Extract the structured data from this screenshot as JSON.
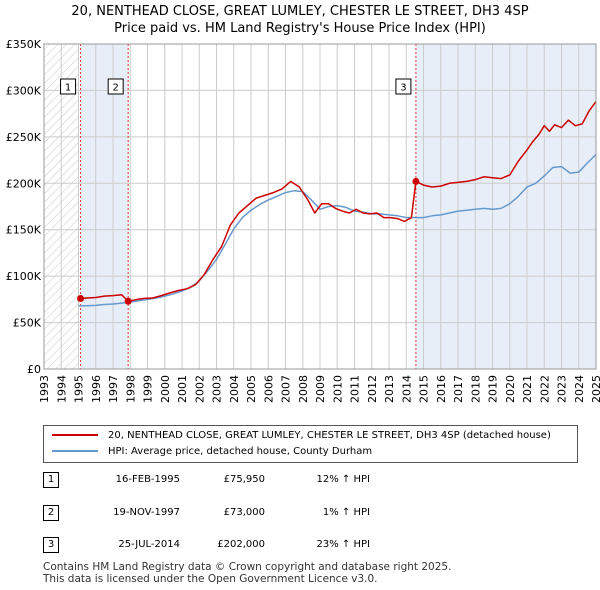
{
  "title_line1": "20, NENTHEAD CLOSE, GREAT LUMLEY, CHESTER LE STREET, DH3 4SP",
  "title_line2": "Price paid vs. HM Land Registry's House Price Index (HPI)",
  "colors": {
    "property": "#cc0000",
    "hpi": "#6699cc",
    "grid": "#cccccc",
    "shade": "#e8eef8"
  },
  "chart_data": {
    "type": "line",
    "title": "Price paid vs. HM Land Registry's House Price Index (HPI)",
    "xlabel": "",
    "ylabel": "",
    "xlim": [
      1993,
      2025
    ],
    "ylim": [
      0,
      350000
    ],
    "y_ticks": [
      0,
      50000,
      100000,
      150000,
      200000,
      250000,
      300000,
      350000
    ],
    "y_tick_labels": [
      "£0",
      "£50K",
      "£100K",
      "£150K",
      "£200K",
      "£250K",
      "£300K",
      "£350K"
    ],
    "x_ticks": [
      1993,
      1994,
      1995,
      1996,
      1997,
      1998,
      1999,
      2000,
      2001,
      2002,
      2003,
      2004,
      2005,
      2006,
      2007,
      2008,
      2009,
      2010,
      2011,
      2012,
      2013,
      2014,
      2015,
      2016,
      2017,
      2018,
      2019,
      2020,
      2021,
      2022,
      2023,
      2024,
      2025
    ],
    "shaded_ranges": [
      [
        1995.12,
        1997.88
      ],
      [
        2014.56,
        2025
      ]
    ],
    "series": [
      {
        "name": "20, NENTHEAD CLOSE, GREAT LUMLEY, CHESTER LE STREET, DH3 4SP (detached house)",
        "color": "#cc0000",
        "x": [
          1995.12,
          1995.5,
          1996,
          1996.5,
          1997,
          1997.5,
          1997.88,
          1998.3,
          1998.8,
          1999.3,
          1999.8,
          2000.3,
          2000.8,
          2001.3,
          2001.8,
          2002.3,
          2002.8,
          2003.3,
          2003.8,
          2004.3,
          2004.8,
          2005.3,
          2005.8,
          2006.3,
          2006.8,
          2007.3,
          2007.8,
          2008.3,
          2008.7,
          2009.1,
          2009.5,
          2009.9,
          2010.3,
          2010.7,
          2011.1,
          2011.5,
          2011.9,
          2012.3,
          2012.7,
          2013.1,
          2013.5,
          2013.9,
          2014.3,
          2014.56,
          2015,
          2015.5,
          2016,
          2016.5,
          2017,
          2017.5,
          2018,
          2018.5,
          2019,
          2019.5,
          2020,
          2020.5,
          2021,
          2021.3,
          2021.7,
          2022,
          2022.3,
          2022.6,
          2023,
          2023.4,
          2023.8,
          2024.2,
          2024.6,
          2025
        ],
        "values": [
          75950,
          76500,
          77000,
          78500,
          79000,
          80000,
          73000,
          74500,
          76000,
          76500,
          79000,
          82000,
          84500,
          86500,
          91000,
          102000,
          118000,
          132000,
          155000,
          168000,
          176000,
          184000,
          187000,
          190000,
          194000,
          202000,
          196000,
          182000,
          168000,
          178000,
          178000,
          173000,
          170000,
          168000,
          172000,
          168000,
          167000,
          168000,
          163000,
          163000,
          162000,
          159000,
          163000,
          202000,
          198000,
          196000,
          197000,
          200000,
          201000,
          202000,
          204000,
          207000,
          206000,
          205000,
          209000,
          224000,
          236000,
          244000,
          253000,
          262000,
          256000,
          263000,
          260000,
          268000,
          262000,
          264000,
          278000,
          288000
        ]
      },
      {
        "name": "HPI: Average price, detached house, County Durham",
        "color": "#6699cc",
        "x": [
          1995,
          1995.5,
          1996,
          1996.5,
          1997,
          1997.5,
          1998,
          1998.5,
          1999,
          1999.5,
          2000,
          2000.5,
          2001,
          2001.5,
          2002,
          2002.5,
          2003,
          2003.5,
          2004,
          2004.5,
          2005,
          2005.5,
          2006,
          2006.5,
          2007,
          2007.5,
          2008,
          2008.5,
          2009,
          2009.5,
          2010,
          2010.5,
          2011,
          2011.5,
          2012,
          2012.5,
          2013,
          2013.5,
          2014,
          2014.5,
          2015,
          2015.5,
          2016,
          2016.5,
          2017,
          2017.5,
          2018,
          2018.5,
          2019,
          2019.5,
          2020,
          2020.5,
          2021,
          2021.5,
          2022,
          2022.5,
          2023,
          2023.5,
          2024,
          2024.5,
          2025
        ],
        "values": [
          68000,
          68200,
          68500,
          69500,
          70000,
          71000,
          72000,
          73500,
          75000,
          76500,
          78500,
          81000,
          84000,
          88000,
          95000,
          106000,
          118000,
          134000,
          151000,
          163000,
          171000,
          177000,
          182000,
          186000,
          190000,
          192000,
          191000,
          182000,
          172000,
          175000,
          176000,
          174000,
          170000,
          169000,
          167000,
          167000,
          166000,
          165000,
          163000,
          163000,
          163000,
          165000,
          166000,
          168000,
          170000,
          171000,
          172000,
          173000,
          172000,
          173000,
          178000,
          186000,
          196000,
          200000,
          208000,
          217000,
          218000,
          211000,
          212000,
          222000,
          231000
        ]
      }
    ],
    "sales": [
      {
        "marker": "1",
        "date": "16-FEB-1995",
        "x": 1995.12,
        "price_value": 75950,
        "price": "£75,950",
        "hpi": "12% ↑ HPI"
      },
      {
        "marker": "2",
        "date": "19-NOV-1997",
        "x": 1997.88,
        "price_value": 73000,
        "price": "£73,000",
        "hpi": "1% ↑ HPI"
      },
      {
        "marker": "3",
        "date": "25-JUL-2014",
        "x": 2014.56,
        "price_value": 202000,
        "price": "£202,000",
        "hpi": "23% ↑ HPI"
      }
    ]
  },
  "legend": {
    "property": "20, NENTHEAD CLOSE, GREAT LUMLEY, CHESTER LE STREET, DH3 4SP (detached house)",
    "hpi": "HPI: Average price, detached house, County Durham"
  },
  "footer_line1": "Contains HM Land Registry data © Crown copyright and database right 2025.",
  "footer_line2": "This data is licensed under the Open Government Licence v3.0."
}
